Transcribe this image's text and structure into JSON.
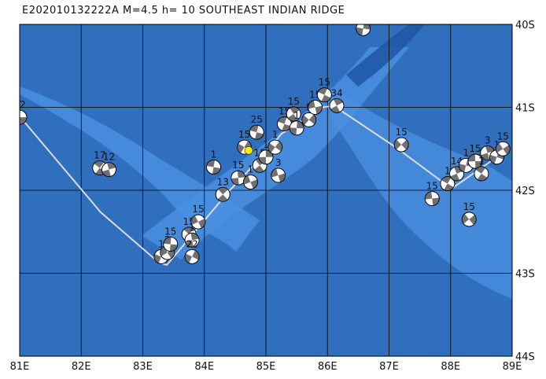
{
  "title": "E202010132222A M=4.5 h= 10 SOUTHEAST INDIAN RIDGE",
  "colors": {
    "ocean_deep": "#2f6fbd",
    "ocean_shallow": "#4a8fe0",
    "plate_track": "#dcdcdc",
    "grid": "#000000",
    "mechanism_compression": "#707070",
    "mechanism_tension": "#ffffff",
    "event_marker": "#ffee00"
  },
  "map": {
    "lon_range": [
      81,
      89
    ],
    "lat_range": [
      -44,
      -40
    ],
    "x_ticks": [
      "81E",
      "82E",
      "83E",
      "84E",
      "85E",
      "86E",
      "87E",
      "88E",
      "89E"
    ],
    "y_ticks": [
      "40S",
      "41S",
      "42S",
      "43S",
      "44S"
    ]
  },
  "events": [
    {
      "lon": 81.0,
      "lat": -41.12,
      "label": "12"
    },
    {
      "lon": 82.3,
      "lat": -41.73,
      "label": "17"
    },
    {
      "lon": 82.45,
      "lat": -41.75,
      "label": "12"
    },
    {
      "lon": 83.3,
      "lat": -42.8,
      "label": "1"
    },
    {
      "lon": 83.4,
      "lat": -42.75,
      "label": "2"
    },
    {
      "lon": 83.45,
      "lat": -42.65,
      "label": "15"
    },
    {
      "lon": 83.75,
      "lat": -42.53,
      "label": "15"
    },
    {
      "lon": 83.8,
      "lat": -42.6,
      "label": "1"
    },
    {
      "lon": 83.8,
      "lat": -42.8,
      "label": "22"
    },
    {
      "lon": 83.9,
      "lat": -42.38,
      "label": "15"
    },
    {
      "lon": 84.15,
      "lat": -41.72,
      "label": "1"
    },
    {
      "lon": 84.3,
      "lat": -42.05,
      "label": "13"
    },
    {
      "lon": 84.55,
      "lat": -41.85,
      "label": "15"
    },
    {
      "lon": 84.65,
      "lat": -41.48,
      "label": "15"
    },
    {
      "lon": 84.75,
      "lat": -41.9,
      "label": "1"
    },
    {
      "lon": 84.85,
      "lat": -41.3,
      "label": "25"
    },
    {
      "lon": 84.9,
      "lat": -41.7,
      "label": "15"
    },
    {
      "lon": 85.0,
      "lat": -41.6,
      "label": "1"
    },
    {
      "lon": 85.15,
      "lat": -41.48,
      "label": "1"
    },
    {
      "lon": 85.2,
      "lat": -41.82,
      "label": "3"
    },
    {
      "lon": 85.3,
      "lat": -41.2,
      "label": "15"
    },
    {
      "lon": 85.45,
      "lat": -41.08,
      "label": "15"
    },
    {
      "lon": 85.5,
      "lat": -41.25,
      "label": "1"
    },
    {
      "lon": 85.7,
      "lat": -41.15,
      "label": "5"
    },
    {
      "lon": 85.8,
      "lat": -41.0,
      "label": "15"
    },
    {
      "lon": 85.95,
      "lat": -40.85,
      "label": "15"
    },
    {
      "lon": 86.15,
      "lat": -40.98,
      "label": "34"
    },
    {
      "lon": 86.58,
      "lat": -40.05,
      "label": "15"
    },
    {
      "lon": 87.2,
      "lat": -41.45,
      "label": "15"
    },
    {
      "lon": 87.7,
      "lat": -42.1,
      "label": "15"
    },
    {
      "lon": 87.95,
      "lat": -41.92,
      "label": "1"
    },
    {
      "lon": 88.1,
      "lat": -41.8,
      "label": "14"
    },
    {
      "lon": 88.25,
      "lat": -41.7,
      "label": "1"
    },
    {
      "lon": 88.3,
      "lat": -42.35,
      "label": "15"
    },
    {
      "lon": 88.4,
      "lat": -41.65,
      "label": "15"
    },
    {
      "lon": 88.5,
      "lat": -41.8,
      "label": "1"
    },
    {
      "lon": 88.6,
      "lat": -41.55,
      "label": "3"
    },
    {
      "lon": 88.75,
      "lat": -41.6,
      "label": "1"
    },
    {
      "lon": 88.85,
      "lat": -41.5,
      "label": "15"
    }
  ],
  "event_marker": {
    "lon": 84.72,
    "lat": -41.52
  }
}
